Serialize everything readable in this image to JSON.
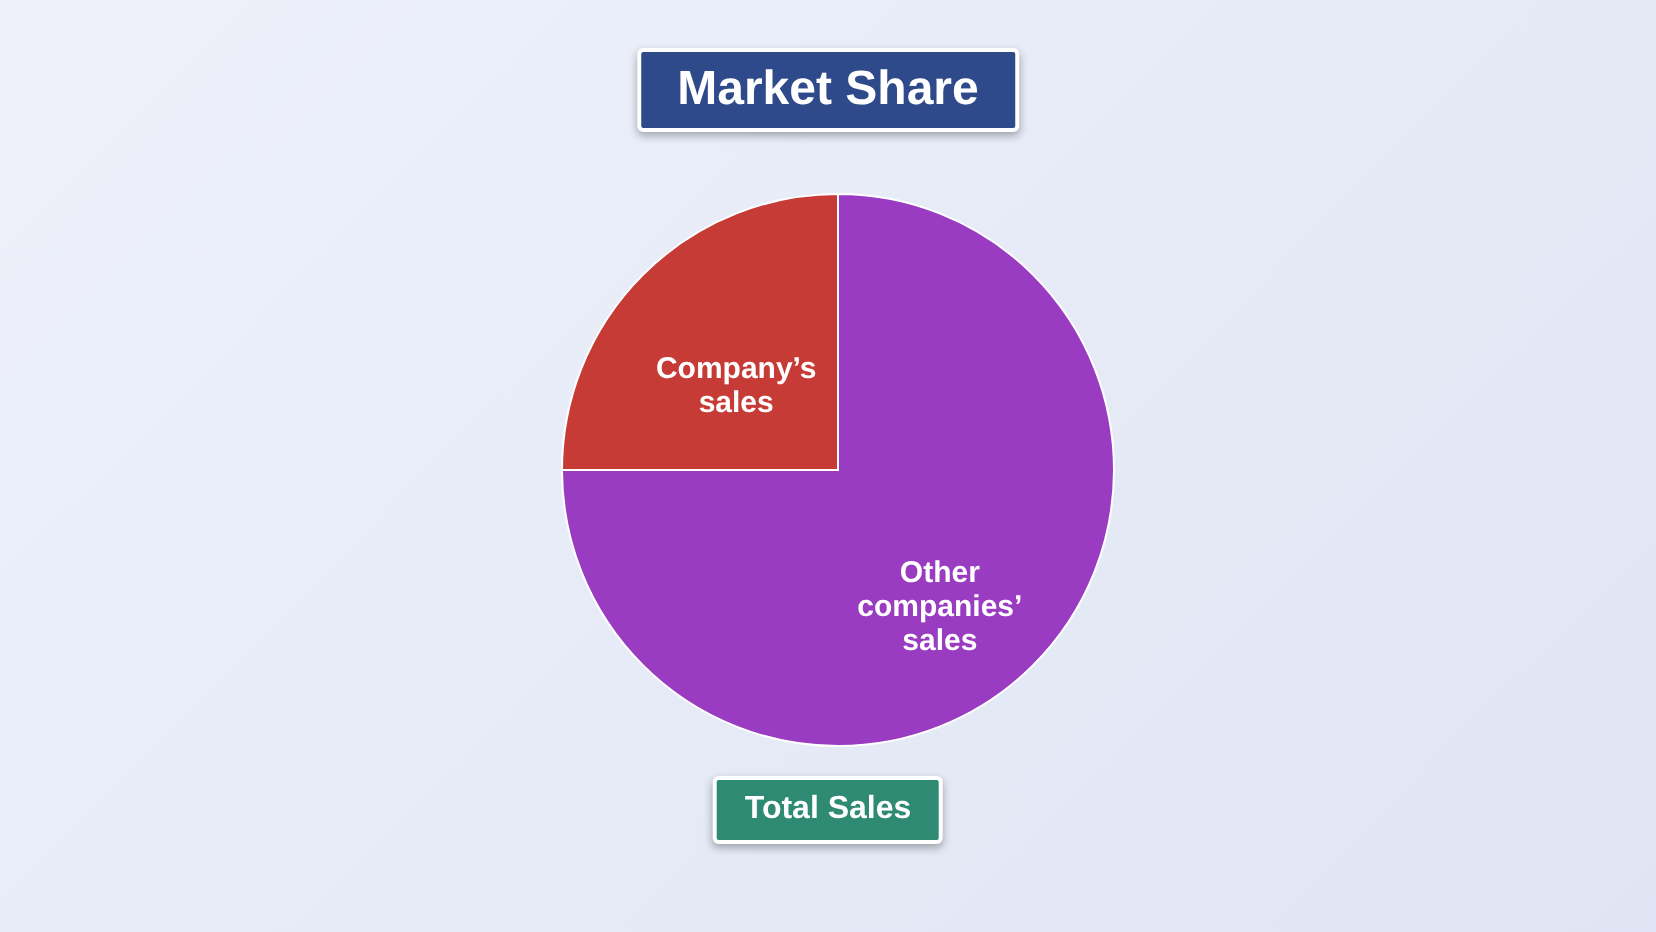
{
  "chart_data": {
    "type": "pie",
    "title": "Market Share",
    "xlabel": "Total Sales",
    "categories": [
      "Company’s sales",
      "Other companies’ sales"
    ],
    "values": [
      25,
      75
    ],
    "colors": [
      "#c63b35",
      "#9a3cc2"
    ],
    "legend": false
  }
}
